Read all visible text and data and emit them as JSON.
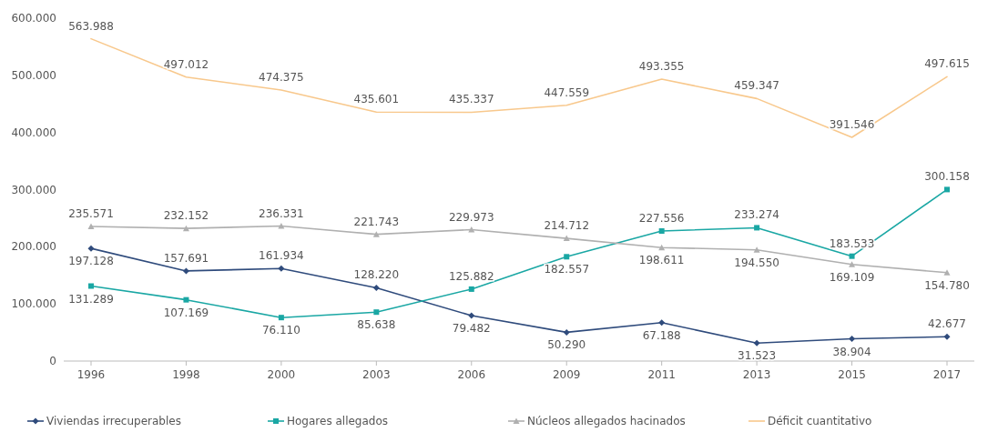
{
  "chart_data": {
    "type": "line",
    "categories": [
      "1996",
      "1998",
      "2000",
      "2003",
      "2006",
      "2009",
      "2011",
      "2013",
      "2015",
      "2017"
    ],
    "ylim": [
      0,
      600000
    ],
    "yticks": [
      {
        "value": 0,
        "label": "0"
      },
      {
        "value": 100000,
        "label": "100.000"
      },
      {
        "value": 200000,
        "label": "200.000"
      },
      {
        "value": 300000,
        "label": "300.000"
      },
      {
        "value": 400000,
        "label": "400.000"
      },
      {
        "value": 500000,
        "label": "500.000"
      },
      {
        "value": 600000,
        "label": "600.000"
      }
    ],
    "legend": "bottom",
    "grid": false,
    "series": [
      {
        "name": "Viviendas irrecuperables",
        "color": "#2f4b7c",
        "marker": "diamond",
        "values": [
          197128,
          157691,
          161934,
          128220,
          79482,
          50290,
          67188,
          31523,
          38904,
          42677
        ],
        "value_labels": [
          "197.128",
          "157.691",
          "161.934",
          "128.220",
          "79.482",
          "50.290",
          "67.188",
          "31.523",
          "38.904",
          "42.677"
        ]
      },
      {
        "name": "Hogares allegados",
        "color": "#1aa7a4",
        "marker": "square",
        "values": [
          131289,
          107169,
          76110,
          85638,
          125882,
          182557,
          227556,
          233274,
          183533,
          300158
        ],
        "value_labels": [
          "131.289",
          "107.169",
          "76.110",
          "85.638",
          "125.882",
          "182.557",
          "227.556",
          "233.274",
          "183.533",
          "300.158"
        ]
      },
      {
        "name": "Núcleos allegados hacinados",
        "color": "#b0b0b0",
        "marker": "triangle",
        "values": [
          235571,
          232152,
          236331,
          221743,
          229973,
          214712,
          198611,
          194550,
          169109,
          154780
        ],
        "value_labels": [
          "235.571",
          "232.152",
          "236.331",
          "221.743",
          "229.973",
          "214.712",
          "198.611",
          "194.550",
          "169.109",
          "154.780"
        ]
      },
      {
        "name": "Déficit cuantitativo",
        "color": "#f8c88c",
        "marker": "none",
        "values": [
          563988,
          497012,
          474375,
          435601,
          435337,
          447559,
          493355,
          459347,
          391546,
          497615
        ],
        "value_labels": [
          "563.988",
          "497.012",
          "474.375",
          "435.601",
          "435.337",
          "447.559",
          "493.355",
          "459.347",
          "391.546",
          "497.615"
        ]
      }
    ]
  }
}
